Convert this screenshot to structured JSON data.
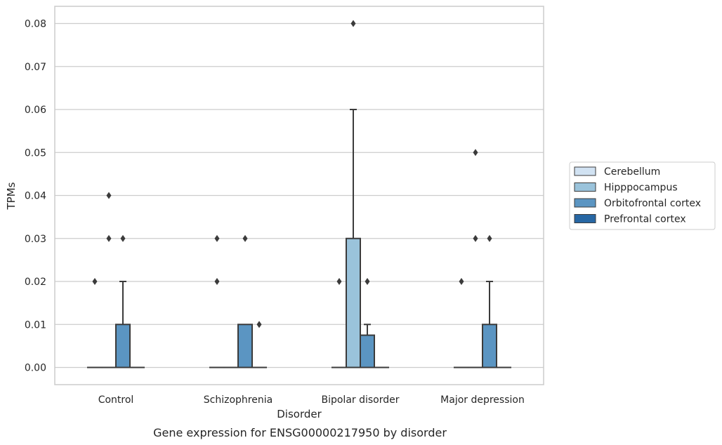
{
  "chart_data": {
    "type": "box",
    "title": "",
    "caption": "Gene expression for ENSG00000217950 by disorder",
    "xlabel": "Disorder",
    "ylabel": "TPMs",
    "ylim": [
      -0.004,
      0.084
    ],
    "yticks": [
      0.0,
      0.01,
      0.02,
      0.03,
      0.04,
      0.05,
      0.06,
      0.07,
      0.08
    ],
    "ytick_labels": [
      "0.00",
      "0.01",
      "0.02",
      "0.03",
      "0.04",
      "0.05",
      "0.06",
      "0.07",
      "0.08"
    ],
    "grid": "horizontal",
    "legend_position": "right, outside",
    "categories": [
      "Control",
      "Schizophrenia",
      "Bipolar disorder",
      "Major depression"
    ],
    "series": [
      {
        "name": "Cerebellum",
        "color": "#d1e2f2",
        "boxes": [
          {
            "q1": 0,
            "median": 0,
            "q3": 0,
            "whisker_low": 0,
            "whisker_high": 0,
            "outliers": [
              0.02
            ]
          },
          {
            "q1": 0,
            "median": 0,
            "q3": 0,
            "whisker_low": 0,
            "whisker_high": 0,
            "outliers": [
              0.02,
              0.03
            ]
          },
          {
            "q1": 0,
            "median": 0,
            "q3": 0,
            "whisker_low": 0,
            "whisker_high": 0,
            "outliers": [
              0.02
            ]
          },
          {
            "q1": 0,
            "median": 0,
            "q3": 0,
            "whisker_low": 0,
            "whisker_high": 0,
            "outliers": [
              0.02
            ]
          }
        ]
      },
      {
        "name": "Hipppocampus",
        "color": "#9ac3db",
        "boxes": [
          {
            "q1": 0,
            "median": 0,
            "q3": 0,
            "whisker_low": 0,
            "whisker_high": 0,
            "outliers": [
              0.03,
              0.04
            ]
          },
          {
            "q1": 0,
            "median": 0,
            "q3": 0,
            "whisker_low": 0,
            "whisker_high": 0,
            "outliers": []
          },
          {
            "q1": 0,
            "median": 0,
            "q3": 0.03,
            "whisker_low": 0,
            "whisker_high": 0.06,
            "outliers": [
              0.08
            ]
          },
          {
            "q1": 0,
            "median": 0,
            "q3": 0,
            "whisker_low": 0,
            "whisker_high": 0,
            "outliers": [
              0.03,
              0.05
            ]
          }
        ]
      },
      {
        "name": "Orbitofrontal cortex",
        "color": "#5b95c2",
        "boxes": [
          {
            "q1": 0,
            "median": 0,
            "q3": 0.01,
            "whisker_low": 0,
            "whisker_high": 0.02,
            "outliers": [
              0.03
            ]
          },
          {
            "q1": 0,
            "median": 0,
            "q3": 0.01,
            "whisker_low": 0,
            "whisker_high": 0.01,
            "outliers": [
              0.03
            ]
          },
          {
            "q1": 0,
            "median": 0,
            "q3": 0.0075,
            "whisker_low": 0,
            "whisker_high": 0.01,
            "outliers": [
              0.02
            ]
          },
          {
            "q1": 0,
            "median": 0,
            "q3": 0.01,
            "whisker_low": 0,
            "whisker_high": 0.02,
            "outliers": [
              0.03
            ]
          }
        ]
      },
      {
        "name": "Prefrontal cortex",
        "color": "#2767a4",
        "boxes": [
          {
            "q1": 0,
            "median": 0,
            "q3": 0,
            "whisker_low": 0,
            "whisker_high": 0,
            "outliers": []
          },
          {
            "q1": 0,
            "median": 0,
            "q3": 0,
            "whisker_low": 0,
            "whisker_high": 0,
            "outliers": [
              0.01
            ]
          },
          {
            "q1": 0,
            "median": 0,
            "q3": 0,
            "whisker_low": 0,
            "whisker_high": 0,
            "outliers": []
          },
          {
            "q1": 0,
            "median": 0,
            "q3": 0,
            "whisker_low": 0,
            "whisker_high": 0,
            "outliers": []
          }
        ]
      }
    ]
  }
}
